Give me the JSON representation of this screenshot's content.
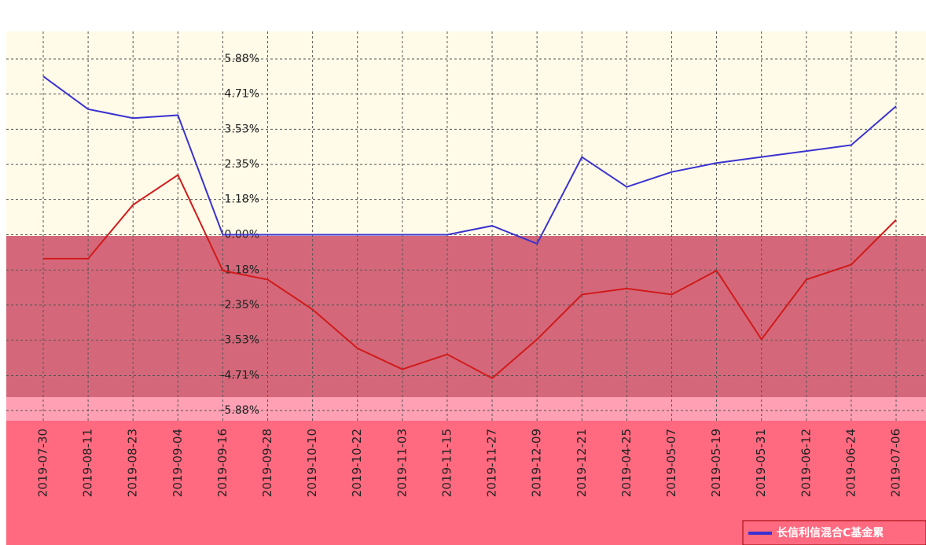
{
  "chart_data": {
    "type": "line",
    "legend": "长信利信混合C基金累",
    "categories": [
      "2019-07-30",
      "2019-08-11",
      "2019-08-23",
      "2019-09-04",
      "2019-09-16",
      "2019-09-28",
      "2019-10-10",
      "2019-10-22",
      "2019-11-03",
      "2019-11-15",
      "2019-11-27",
      "2019-12-09",
      "2019-12-21",
      "2019-04-25",
      "2019-05-07",
      "2019-05-19",
      "2019-05-31",
      "2019-06-12",
      "2019-06-24",
      "2019-07-06"
    ],
    "series": [
      {
        "name": "长信利信混合C基金累",
        "color": "#3a32d0",
        "values": [
          5.3,
          4.2,
          3.9,
          4.0,
          0.0,
          0.0,
          0.0,
          0.0,
          0.0,
          0.0,
          0.3,
          -0.3,
          2.6,
          1.6,
          2.1,
          2.4,
          2.6,
          2.8,
          3.0,
          4.3
        ]
      },
      {
        "color": "#d11a1a",
        "values": [
          -0.8,
          -0.8,
          1.0,
          2.0,
          -1.2,
          -1.5,
          -2.5,
          -3.8,
          -4.5,
          -4.0,
          -4.8,
          -3.5,
          -2.0,
          -1.8,
          -2.0,
          -1.2,
          -3.5,
          -1.5,
          -1.0,
          0.5
        ]
      }
    ],
    "ylim": [
      -5.88,
      5.88
    ],
    "yticks": [
      {
        "value": 5.88,
        "label": "5.88%"
      },
      {
        "value": 4.71,
        "label": "4.71%"
      },
      {
        "value": 3.53,
        "label": "3.53%"
      },
      {
        "value": 2.35,
        "label": "2.35%"
      },
      {
        "value": 1.18,
        "label": "1.18%"
      },
      {
        "value": 0,
        "label": "0.00%"
      },
      {
        "value": -1.18,
        "label": "-1.18%"
      },
      {
        "value": -2.35,
        "label": "-2.35%"
      },
      {
        "value": -3.53,
        "label": "-3.53%"
      },
      {
        "value": -4.71,
        "label": "-4.71%"
      },
      {
        "value": -5.88,
        "label": "-5.88%"
      }
    ],
    "grid": true
  }
}
